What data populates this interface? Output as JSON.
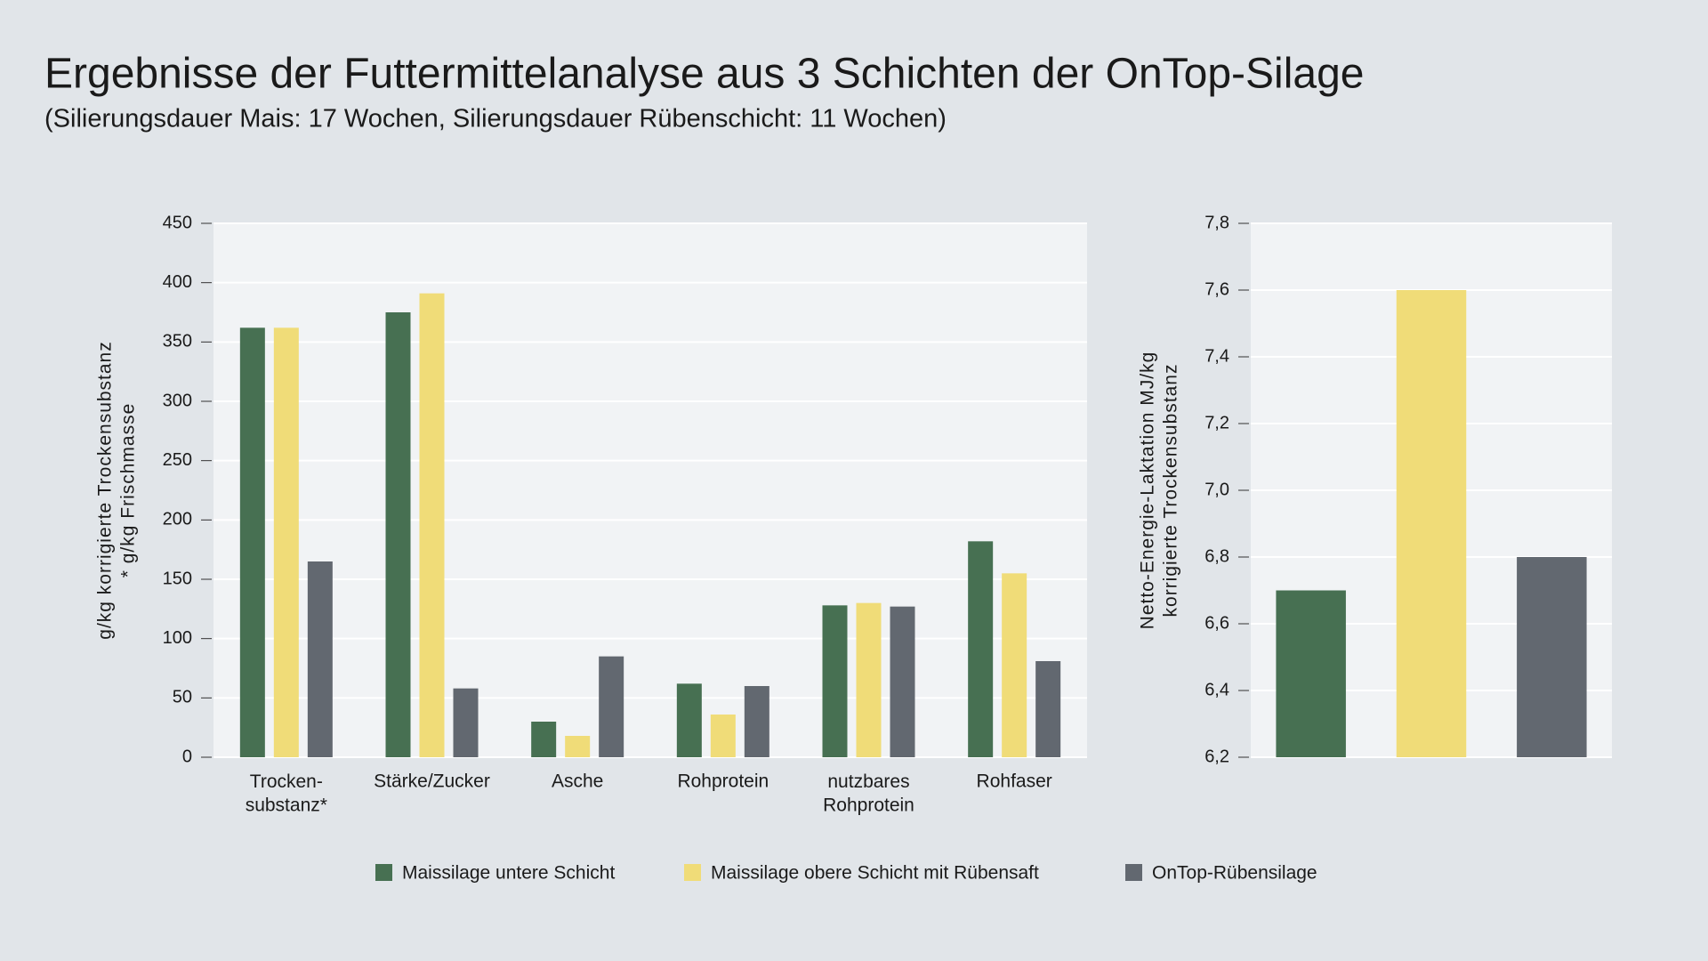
{
  "title": "Ergebnisse der Futtermittelanalyse aus 3 Schichten der OnTop-Silage",
  "subtitle": "(Silierungsdauer Mais: 17 Wochen, Silierungsdauer Rübenschicht: 11 Wochen)",
  "chart_data": [
    {
      "type": "bar",
      "ylabel": [
        "g/kg korrigierte Trockensubstanz",
        "* g/kg Frischmasse"
      ],
      "categories": [
        "Trocken-\nsubstanz*",
        "Stärke/Zucker",
        "Asche",
        "Rohprotein",
        "nutzbares\nRohprotein",
        "Rohfaser"
      ],
      "series": [
        {
          "name": "Maissilage untere Schicht",
          "color": "#477052",
          "values": [
            362,
            375,
            30,
            62,
            128,
            182
          ]
        },
        {
          "name": "Maissilage obere Schicht mit Rübensaft",
          "color": "#f0dc78",
          "values": [
            362,
            391,
            18,
            36,
            130,
            155
          ]
        },
        {
          "name": "OnTop-Rübensilage",
          "color": "#626870",
          "values": [
            165,
            58,
            85,
            60,
            127,
            81
          ]
        }
      ],
      "ylim": [
        0,
        450
      ],
      "yticks": [
        0,
        50,
        100,
        150,
        200,
        250,
        300,
        350,
        400,
        450
      ],
      "grid": true
    },
    {
      "type": "bar",
      "ylabel": [
        "Netto-Energie-Laktation MJ/kg",
        "korrigierte Trockensubstanz"
      ],
      "categories": [
        null,
        null,
        null
      ],
      "values": [
        6.7,
        7.6,
        6.8
      ],
      "colors": [
        "#477052",
        "#f0dc78",
        "#626870"
      ],
      "ylim": [
        6.2,
        7.8
      ],
      "yticks": [
        {
          "value": 6.2,
          "label": "6,2"
        },
        {
          "value": 6.4,
          "label": "6,4"
        },
        {
          "value": 6.6,
          "label": "6,6"
        },
        {
          "value": 6.8,
          "label": "6,8"
        },
        {
          "value": 7.0,
          "label": "7,0"
        },
        {
          "value": 7.2,
          "label": "7,2"
        },
        {
          "value": 7.4,
          "label": "7,4"
        },
        {
          "value": 7.6,
          "label": "7,6"
        },
        {
          "value": 7.8,
          "label": "7,8"
        }
      ],
      "grid": true
    }
  ]
}
